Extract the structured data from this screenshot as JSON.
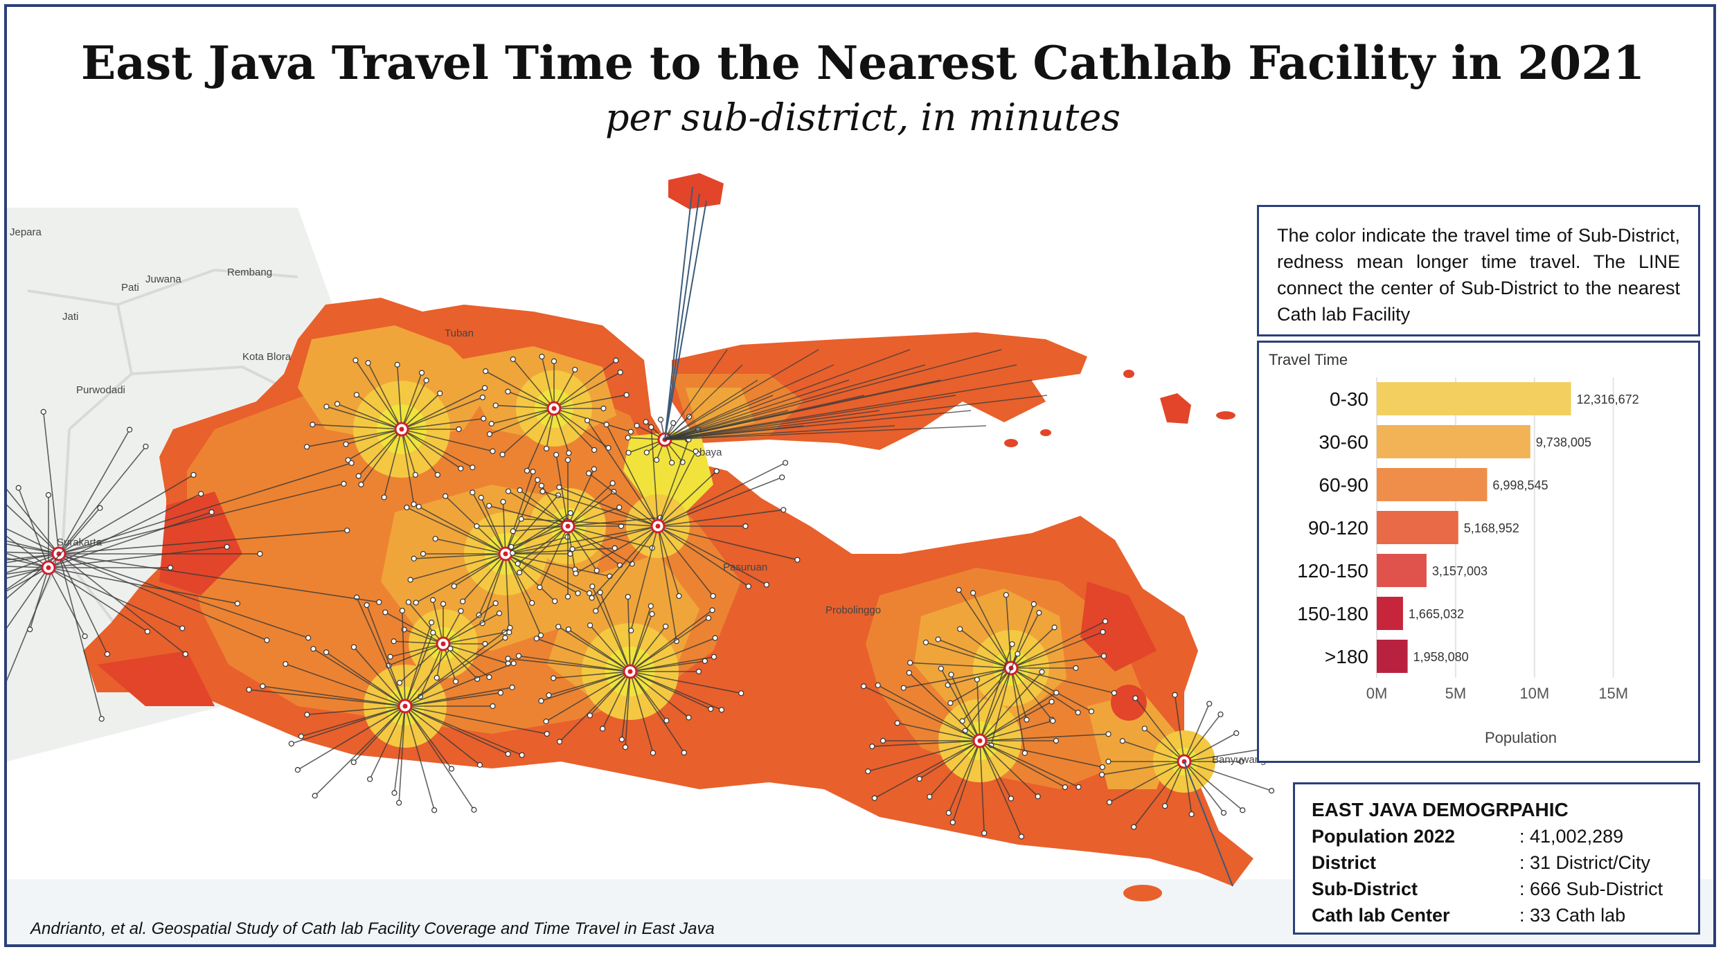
{
  "title": "East Java Travel Time to the Nearest Cathlab Facility in 2021",
  "subtitle": "per sub-district, in minutes",
  "note": "The color indicate the travel time of Sub-District, redness mean longer time travel. The LINE connect the center of Sub-District to the nearest Cath lab Facility",
  "map": {
    "places": [
      "Jepara",
      "Pati",
      "Juwana",
      "Rembang",
      "Jati",
      "Tuban",
      "Kota Blora",
      "Purwodadi",
      "Surakarta",
      "Pasuruan",
      "Probolinggo",
      "Banyuwangi",
      "baya"
    ],
    "colors": {
      "c0": "#f1e33c",
      "c1": "#f5c842",
      "c2": "#f0a53a",
      "c3": "#ec8332",
      "c4": "#e8602c",
      "c5": "#e2452a",
      "line": "#3a3a3a",
      "cathlab": "#d21f2c"
    }
  },
  "chart_data": {
    "type": "bar",
    "orientation": "horizontal",
    "title": "Travel Time",
    "categories": [
      "0-30",
      "30-60",
      "60-90",
      "90-120",
      "120-150",
      "150-180",
      ">180"
    ],
    "values": [
      12316672,
      9738005,
      6998545,
      5168952,
      3157003,
      1665032,
      1958080
    ],
    "value_labels": [
      "12,316,672",
      "9,738,005",
      "6,998,545",
      "5,168,952",
      "3,157,003",
      "1,665,032",
      "1,958,080"
    ],
    "colors": [
      "#f3cf60",
      "#f2b256",
      "#ee8e4a",
      "#e86a46",
      "#e0524c",
      "#c7253c",
      "#b8223f"
    ],
    "xlabel": "Population",
    "xticks": [
      "0M",
      "5M",
      "10M",
      "15M"
    ],
    "xlim": [
      0,
      18000000
    ],
    "grid": true
  },
  "demographic": {
    "title": "EAST JAVA DEMOGRPAHIC",
    "rows": [
      {
        "label": "Population 2022",
        "value": ": 41,002,289"
      },
      {
        "label": "District",
        "value": ": 31 District/City"
      },
      {
        "label": "Sub-District",
        "value": ": 666 Sub-District"
      },
      {
        "label": "Cath lab Center",
        "value": ": 33 Cath lab"
      }
    ]
  },
  "credit": {
    "authors": "Andrianto, et al.",
    "study": "Geospatial Study of Cath lab Facility Coverage and Time Travel in East Java"
  }
}
